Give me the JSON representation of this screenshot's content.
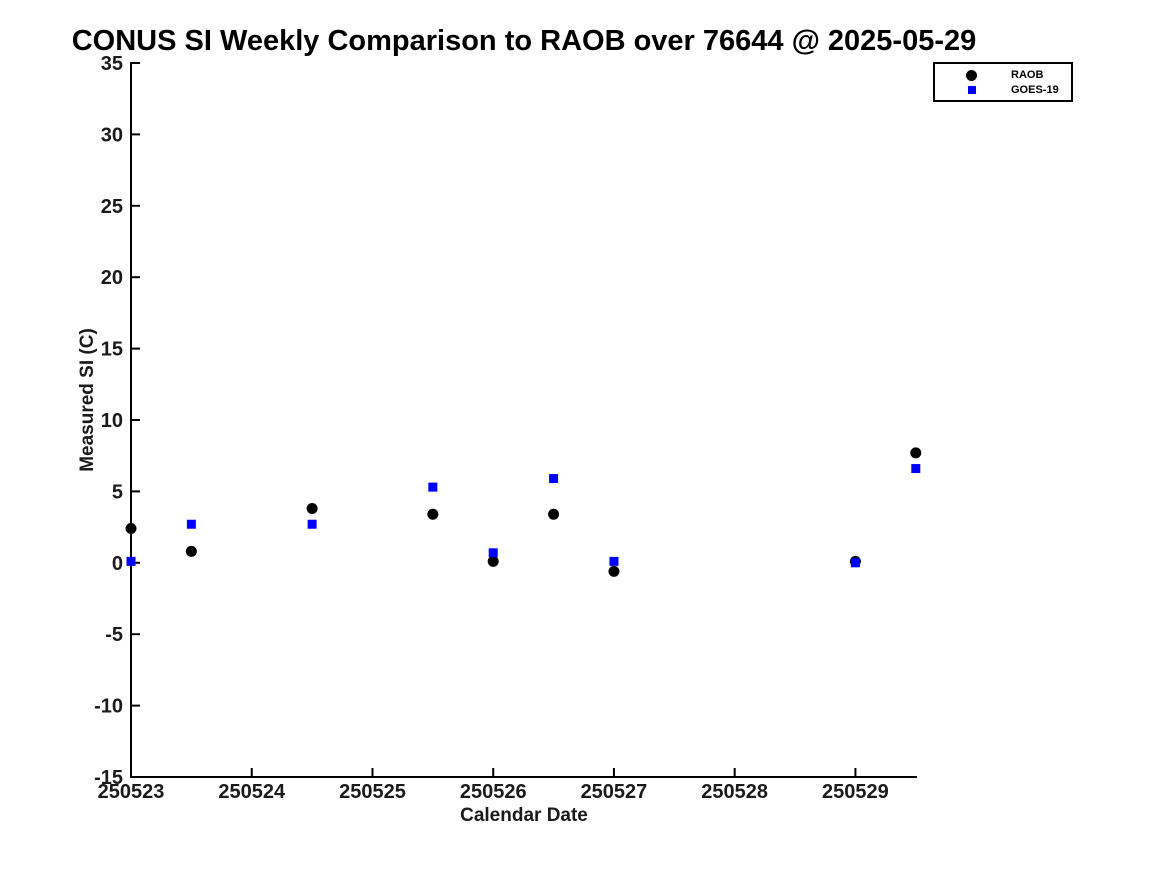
{
  "title": "CONUS SI Weekly Comparison to RAOB over 76644 @ 2025-05-29",
  "chart_data": {
    "type": "scatter",
    "title": "CONUS SI Weekly Comparison to RAOB over 76644 @ 2025-05-29",
    "xlabel": "Calendar Date",
    "ylabel": "Measured SI (C)",
    "xlim": [
      250523,
      250529.51
    ],
    "ylim": [
      -15,
      35
    ],
    "x_ticks": [
      250523,
      250524,
      250525,
      250526,
      250527,
      250528,
      250529
    ],
    "y_ticks": [
      -15,
      -10,
      -5,
      0,
      5,
      10,
      15,
      20,
      25,
      30,
      35
    ],
    "grid": false,
    "legend_position": "top-right",
    "axis_color": "#000000",
    "x": [
      250523.0,
      250523.5,
      250524.5,
      250525.5,
      250526.0,
      250526.5,
      250527.0,
      250529.0,
      250529.5
    ],
    "series": [
      {
        "name": "RAOB",
        "marker": "circle",
        "color": "#000000",
        "values": [
          2.4,
          0.8,
          3.8,
          3.4,
          0.1,
          3.4,
          -0.6,
          0.1,
          7.7
        ]
      },
      {
        "name": "GOES-19",
        "marker": "square",
        "color": "#0000ff",
        "values": [
          0.1,
          2.7,
          2.7,
          5.3,
          0.7,
          5.9,
          0.1,
          0.0,
          6.6
        ]
      }
    ]
  }
}
